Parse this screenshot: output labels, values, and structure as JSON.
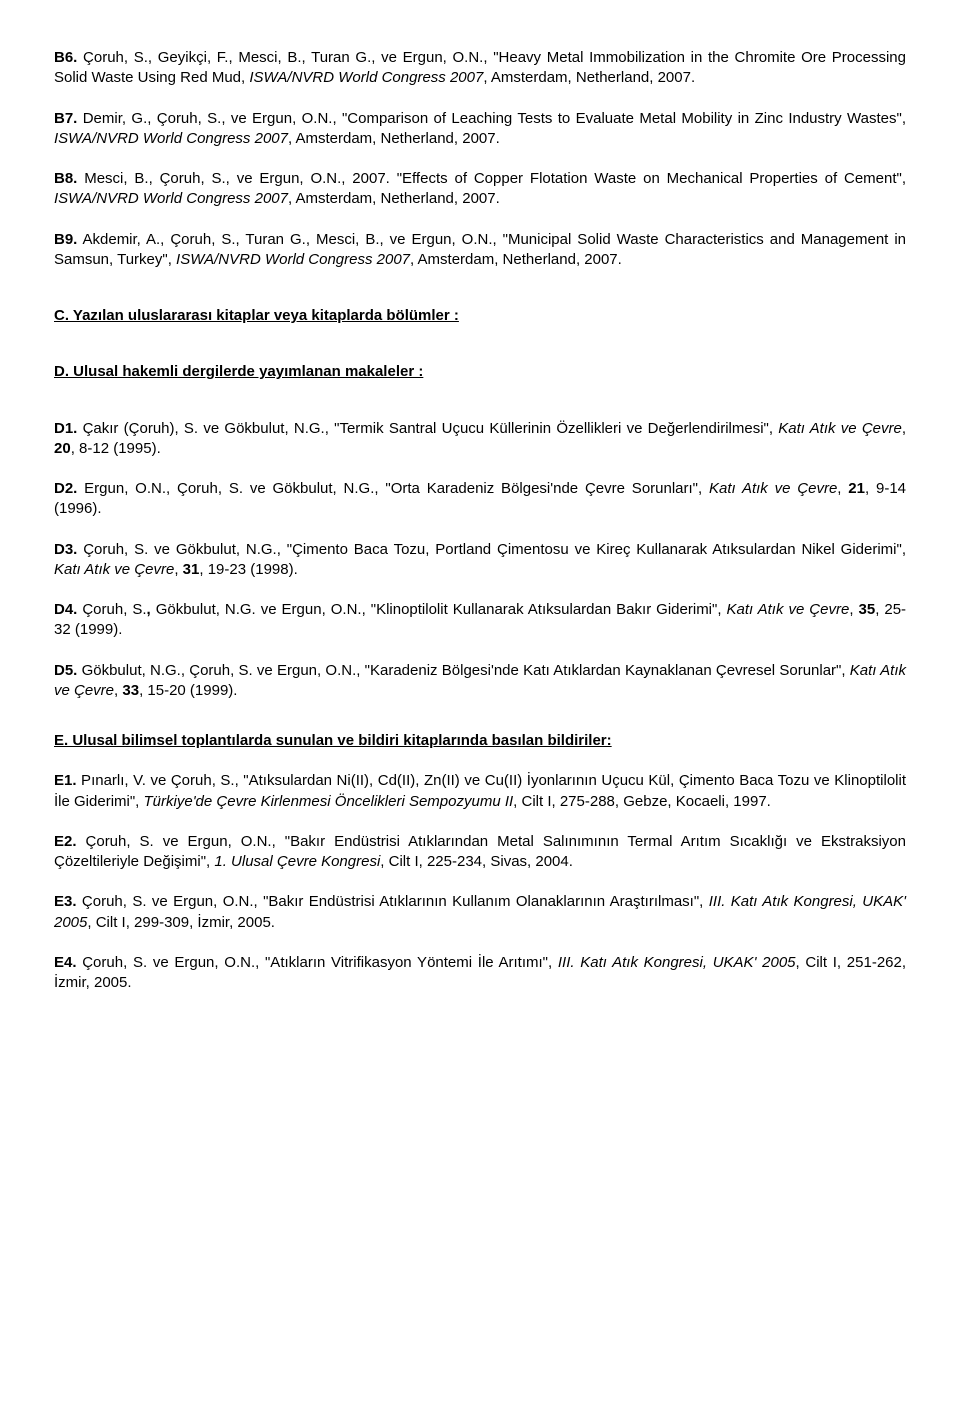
{
  "entries": {
    "b6": {
      "label": "B6.",
      "authors": " Çoruh, S., Geyikçi, F., Mesci, B., Turan G., ve Ergun, O.N., \"Heavy Metal Immobilization in the Chromite Ore Processing Solid Waste Using Red Mud, ",
      "italic": "ISWA/NVRD World Congress 2007",
      "tail": ", Amsterdam, Netherland, 2007."
    },
    "b7": {
      "label": "B7.",
      "authors": " Demir, G., Çoruh, S., ve Ergun, O.N., \"Comparison of Leaching Tests to Evaluate Metal Mobility in Zinc Industry Wastes\", ",
      "italic": "ISWA/NVRD World Congress 2007",
      "tail": ", Amsterdam, Netherland, 2007."
    },
    "b8": {
      "label": "B8.",
      "authors": " Mesci, B., Çoruh, S., ve Ergun, O.N., 2007. \"Effects of Copper Flotation Waste on Mechanical Properties of Cement\", ",
      "italic": "ISWA/NVRD World Congress 2007",
      "tail": ", Amsterdam, Netherland, 2007."
    },
    "b9": {
      "label": "B9.",
      "authors": " Akdemir, A., Çoruh, S., Turan G., Mesci, B., ve Ergun, O.N., \"Municipal Solid Waste Characteristics and Management in Samsun, Turkey\", ",
      "italic": "ISWA/NVRD World Congress 2007",
      "tail": ", Amsterdam, Netherland, 2007."
    },
    "c_heading": "C. Yazılan uluslararası kitaplar veya kitaplarda bölümler :",
    "d_heading": "D. Ulusal hakemli dergilerde yayımlanan makaleler :",
    "d1": {
      "label": "D1.",
      "authors": " Çakır (Çoruh), S. ve Gökbulut, N.G., \"Termik Santral Uçucu Küllerinin Özellikleri ve Değerlendirilmesi\", ",
      "italic": "Katı Atık ve Çevre",
      "tail1": ", ",
      "vol": "20",
      "tail2": ", 8-12 (1995)."
    },
    "d2": {
      "label": "D2.",
      "authors": " Ergun, O.N., Çoruh, S. ve Gökbulut, N.G., \"Orta Karadeniz Bölgesi'nde Çevre Sorunları\", ",
      "italic": "Katı Atık ve Çevre",
      "tail1": ", ",
      "vol": "21",
      "tail2": ", 9-14 (1996)."
    },
    "d3": {
      "label": "D3.",
      "authors": " Çoruh, S. ve Gökbulut, N.G., \"Çimento Baca Tozu, Portland Çimentosu ve Kireç Kullanarak Atıksulardan Nikel Giderimi\", ",
      "italic": "Katı Atık ve Çevre",
      "tail1": ", ",
      "vol": "31",
      "tail2": ", 19-23 (1998)."
    },
    "d4": {
      "label": "D4.",
      "authors_pre": " Çoruh, S.",
      "authors_bold_comma": ",",
      "authors_post": " Gökbulut, N.G. ve Ergun, O.N., \"Klinoptilolit Kullanarak Atıksulardan Bakır Giderimi\", ",
      "italic": "Katı Atık ve Çevre",
      "tail1": ", ",
      "vol": "35",
      "tail2": ", 25-32 (1999)."
    },
    "d5": {
      "label": "D5.",
      "authors": " Gökbulut, N.G., Çoruh, S. ve Ergun, O.N., \"Karadeniz Bölgesi'nde Katı Atıklardan Kaynaklanan Çevresel Sorunlar\", ",
      "italic": "Katı Atık ve Çevre",
      "tail1": ", ",
      "vol": "33",
      "tail2": ", 15-20 (1999)."
    },
    "e_heading": "E. Ulusal bilimsel toplantılarda sunulan ve bildiri kitaplarında basılan bildiriler:",
    "e1": {
      "label": "E1.",
      "authors": " Pınarlı, V. ve Çoruh, S., \"Atıksulardan Ni(II), Cd(II), Zn(II) ve Cu(II) İyonlarının Uçucu Kül, Çimento Baca Tozu ve Klinoptilolit İle Giderimi\", ",
      "italic": "Türkiye'de Çevre Kirlenmesi Öncelikleri Sempozyumu II",
      "tail": ", Cilt I, 275-288, Gebze, Kocaeli, 1997."
    },
    "e2": {
      "label": "E2.",
      "authors": " Çoruh, S. ve Ergun, O.N., \"Bakır Endüstrisi Atıklarından Metal Salınımının Termal Arıtım Sıcaklığı ve Ekstraksiyon Çözeltileriyle Değişimi\", ",
      "italic": "1. Ulusal Çevre Kongresi",
      "tail": ", Cilt I, 225-234, Sivas, 2004."
    },
    "e3": {
      "label": "E3.",
      "authors": " Çoruh, S. ve Ergun, O.N., \"Bakır Endüstrisi Atıklarının Kullanım Olanaklarının Araştırılması\", ",
      "italic": "III. Katı Atık Kongresi, UKAK' 2005",
      "tail": ", Cilt I, 299-309, İzmir, 2005."
    },
    "e4": {
      "label": "E4.",
      "authors": " Çoruh, S. ve Ergun, O.N., \"Atıkların Vitrifikasyon Yöntemi İle Arıtımı\", ",
      "italic": "III. Katı Atık Kongresi, UKAK' 2005",
      "tail": ", Cilt I, 251-262, İzmir, 2005."
    }
  }
}
